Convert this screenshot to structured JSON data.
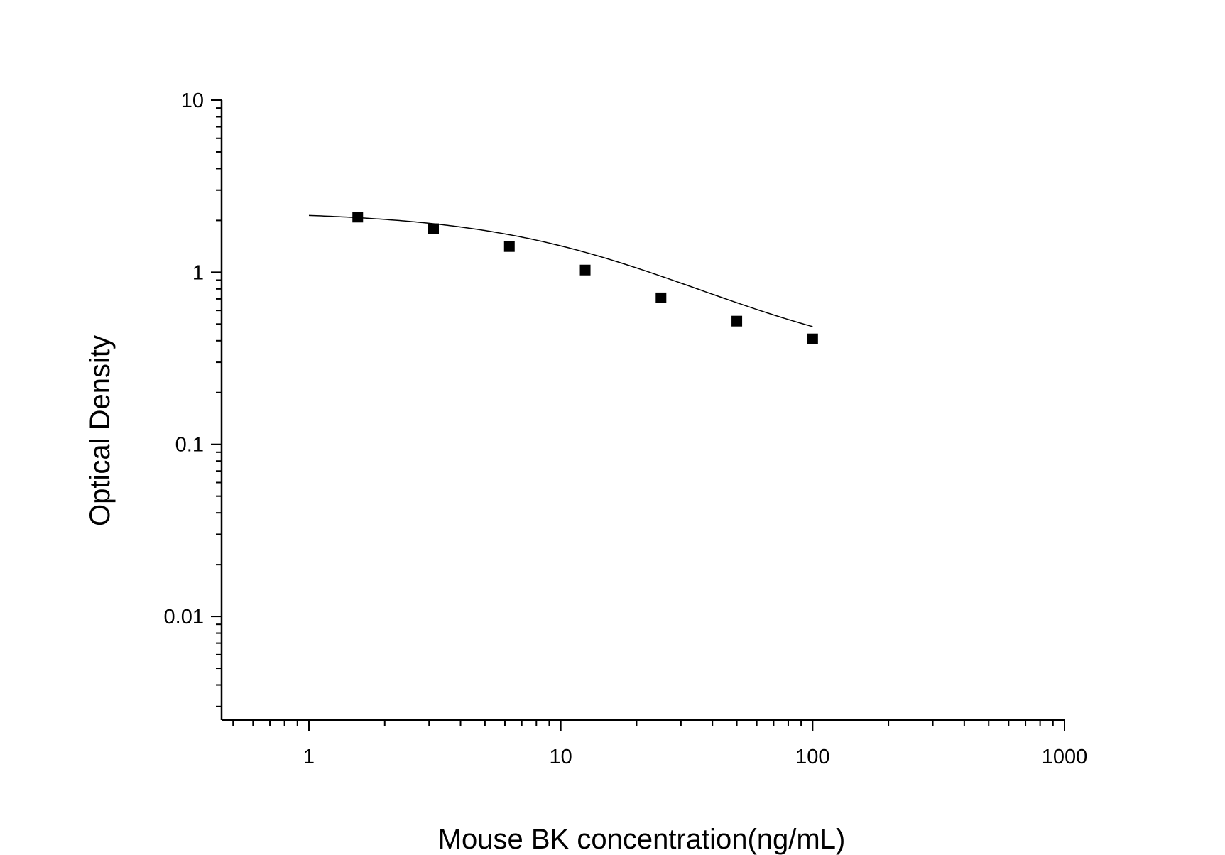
{
  "chart_data": {
    "type": "scatter",
    "title": "",
    "xlabel": "Mouse BK concentration(ng/mL)",
    "ylabel": "Optical Density",
    "xscale": "log",
    "yscale": "log",
    "xlim": [
      0.45,
      1000
    ],
    "ylim": [
      0.0025,
      10
    ],
    "x_ticks": [
      1,
      10,
      100,
      1000
    ],
    "x_tick_labels": [
      "1",
      "10",
      "100",
      "1000"
    ],
    "y_ticks": [
      10,
      1,
      0.1,
      0.01
    ],
    "y_tick_labels": [
      "10",
      "1",
      "0.1",
      "0.01"
    ],
    "grid": false,
    "legend": "none",
    "series": [
      {
        "marker": "square",
        "color": "#000000",
        "x": [
          1.5625,
          3.125,
          6.25,
          12.5,
          25,
          50,
          100
        ],
        "y": [
          2.09,
          1.79,
          1.41,
          1.03,
          0.71,
          0.52,
          0.41
        ]
      }
    ],
    "fit_curve": {
      "type": "4PL",
      "color": "#000000",
      "x_range": [
        1,
        100
      ],
      "A": 2.25,
      "B": 1.08,
      "C": 13.5,
      "D": 0.28
    }
  }
}
